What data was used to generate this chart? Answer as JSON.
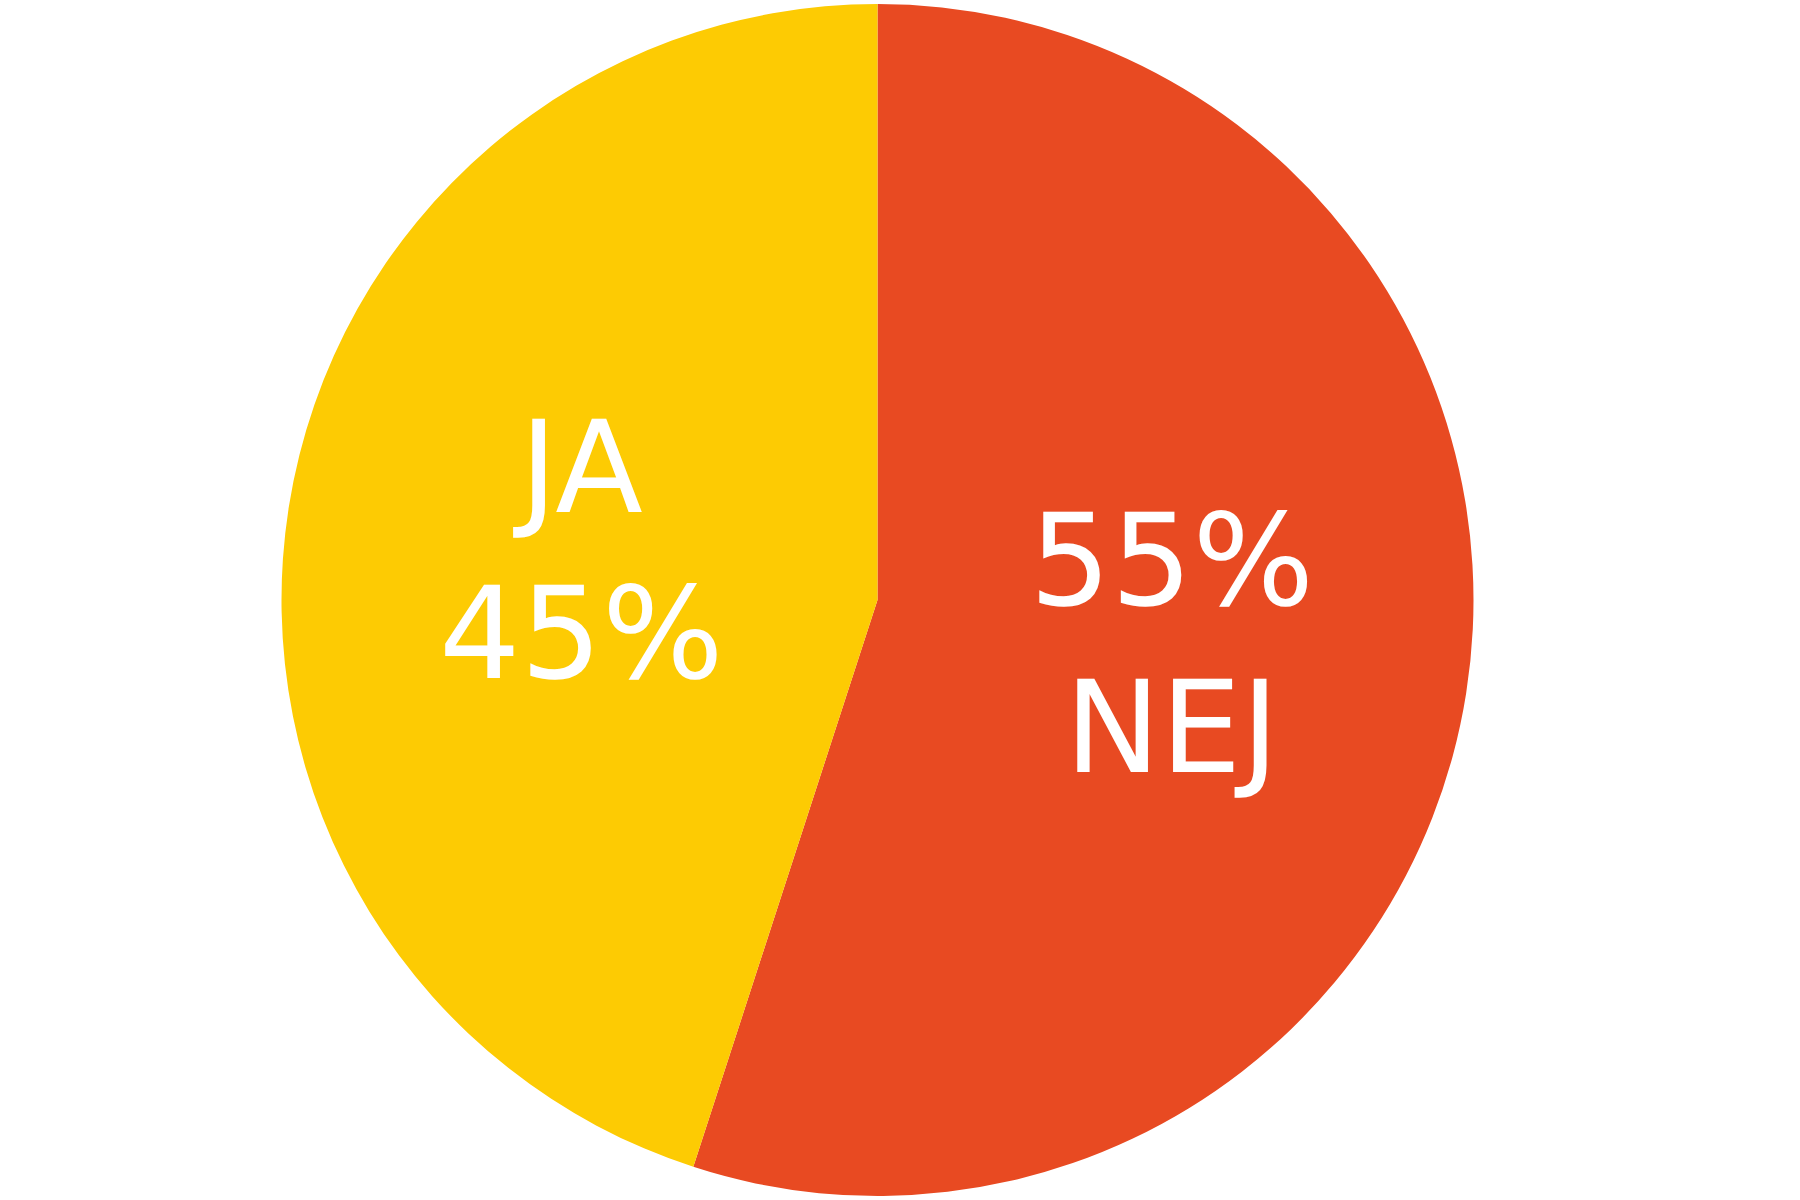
{
  "chart_data": {
    "type": "pie",
    "categories": [
      "NEJ",
      "JA"
    ],
    "values": [
      55,
      45
    ],
    "colors": [
      "#e84a22",
      "#fdcb03"
    ],
    "value_labels": [
      "55%",
      "45%"
    ],
    "legend": false
  }
}
